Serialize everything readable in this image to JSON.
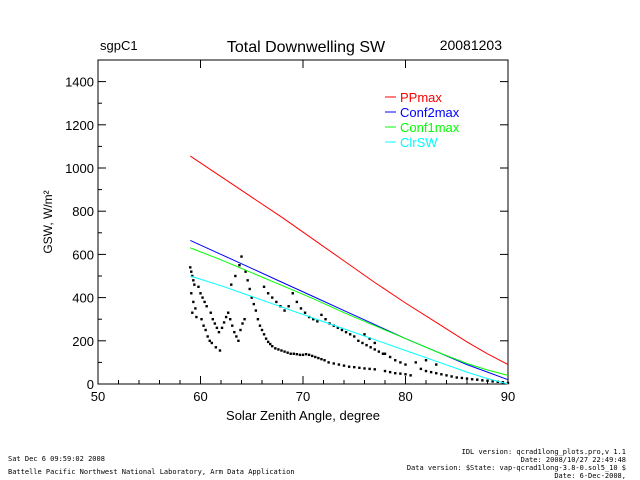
{
  "header": {
    "site": "sgpC1",
    "title": "Total Downwelling SW",
    "date": "20081203"
  },
  "footer": {
    "left_line1": "Sat Dec  6 09:59:02 2008",
    "left_line2": "Battelle Pacific Northwest National Laboratory, Arm Data Application",
    "right_line1": "IDL version: qcrad1long_plots.pro,v 1.1",
    "right_line2": "Date: 2008/10/27 22:49:48",
    "right_line3": "Data version: $State: vap-qcrad1long-3.8-0.sol5_10 $",
    "right_line4": "Date: 6-Dec-2008,"
  },
  "chart_data": {
    "type": "scatter",
    "title": "Total Downwelling SW",
    "xlabel": "Solar Zenith Angle, degree",
    "ylabel": "GSW, W/m²",
    "xlim": [
      50,
      90
    ],
    "ylim": [
      0,
      1500
    ],
    "x_ticks": [
      50,
      60,
      70,
      80,
      90
    ],
    "y_ticks": [
      0,
      200,
      400,
      600,
      800,
      1000,
      1200,
      1400
    ],
    "grid": false,
    "legend_position": "top-right",
    "lines": [
      {
        "name": "PPmax",
        "color": "#ff0000",
        "x": [
          59,
          62,
          65,
          68,
          71,
          74,
          77,
          80,
          83,
          86,
          88,
          90
        ],
        "y": [
          1055,
          960,
          865,
          770,
          670,
          570,
          470,
          375,
          285,
          195,
          140,
          90
        ]
      },
      {
        "name": "Conf2max",
        "color": "#0000ff",
        "x": [
          59,
          62,
          65,
          68,
          71,
          74,
          77,
          80,
          83,
          86,
          88,
          90
        ],
        "y": [
          665,
          600,
          535,
          470,
          405,
          340,
          275,
          210,
          150,
          90,
          55,
          20
        ]
      },
      {
        "name": "Conf1max",
        "color": "#00ff00",
        "x": [
          59,
          62,
          65,
          68,
          71,
          74,
          77,
          80,
          83,
          86,
          88,
          90
        ],
        "y": [
          630,
          575,
          515,
          455,
          395,
          330,
          270,
          210,
          150,
          95,
          65,
          40
        ]
      },
      {
        "name": "ClrSW",
        "color": "#00ffff",
        "x": [
          59,
          62,
          65,
          68,
          71,
          74,
          77,
          80,
          83,
          86,
          88,
          90
        ],
        "y": [
          500,
          455,
          405,
          355,
          305,
          255,
          205,
          155,
          105,
          55,
          25,
          0
        ]
      }
    ],
    "scatter": {
      "color": "#000000",
      "points": [
        [
          59.0,
          540
        ],
        [
          59.1,
          520
        ],
        [
          59.2,
          500
        ],
        [
          59.3,
          480
        ],
        [
          59.4,
          460
        ],
        [
          59.1,
          420
        ],
        [
          59.3,
          380
        ],
        [
          59.5,
          350
        ],
        [
          59.2,
          330
        ],
        [
          59.6,
          310
        ],
        [
          59.8,
          450
        ],
        [
          60.0,
          420
        ],
        [
          60.2,
          400
        ],
        [
          60.4,
          380
        ],
        [
          60.6,
          360
        ],
        [
          60.1,
          300
        ],
        [
          60.3,
          270
        ],
        [
          60.5,
          250
        ],
        [
          60.7,
          220
        ],
        [
          60.9,
          200
        ],
        [
          61.0,
          330
        ],
        [
          61.2,
          300
        ],
        [
          61.4,
          280
        ],
        [
          61.6,
          260
        ],
        [
          61.8,
          240
        ],
        [
          61.1,
          190
        ],
        [
          61.5,
          170
        ],
        [
          61.9,
          155
        ],
        [
          62.1,
          260
        ],
        [
          62.3,
          285
        ],
        [
          62.5,
          310
        ],
        [
          62.7,
          330
        ],
        [
          62.9,
          300
        ],
        [
          63.1,
          270
        ],
        [
          63.3,
          240
        ],
        [
          63.5,
          220
        ],
        [
          63.7,
          200
        ],
        [
          63.9,
          250
        ],
        [
          64.1,
          280
        ],
        [
          64.3,
          300
        ],
        [
          63.0,
          460
        ],
        [
          63.4,
          500
        ],
        [
          63.8,
          550
        ],
        [
          64.0,
          590
        ],
        [
          64.4,
          520
        ],
        [
          64.6,
          480
        ],
        [
          64.8,
          440
        ],
        [
          65.0,
          400
        ],
        [
          65.2,
          370
        ],
        [
          65.4,
          340
        ],
        [
          65.6,
          300
        ],
        [
          65.8,
          270
        ],
        [
          66.0,
          250
        ],
        [
          66.2,
          230
        ],
        [
          66.4,
          210
        ],
        [
          66.6,
          195
        ],
        [
          66.8,
          185
        ],
        [
          67.0,
          175
        ],
        [
          67.3,
          165
        ],
        [
          67.6,
          160
        ],
        [
          67.9,
          155
        ],
        [
          68.2,
          150
        ],
        [
          68.5,
          145
        ],
        [
          68.8,
          140
        ],
        [
          69.1,
          140
        ],
        [
          69.4,
          138
        ],
        [
          69.7,
          135
        ],
        [
          70.0,
          135
        ],
        [
          70.3,
          138
        ],
        [
          70.6,
          135
        ],
        [
          70.9,
          130
        ],
        [
          71.2,
          125
        ],
        [
          71.5,
          120
        ],
        [
          71.8,
          115
        ],
        [
          72.1,
          110
        ],
        [
          66.2,
          450
        ],
        [
          66.6,
          420
        ],
        [
          67.0,
          400
        ],
        [
          67.4,
          380
        ],
        [
          67.8,
          360
        ],
        [
          68.2,
          340
        ],
        [
          68.6,
          360
        ],
        [
          69.0,
          420
        ],
        [
          69.4,
          380
        ],
        [
          69.8,
          350
        ],
        [
          70.2,
          330
        ],
        [
          70.6,
          310
        ],
        [
          71.0,
          300
        ],
        [
          71.4,
          290
        ],
        [
          71.8,
          320
        ],
        [
          72.2,
          300
        ],
        [
          72.6,
          280
        ],
        [
          73.0,
          270
        ],
        [
          73.4,
          260
        ],
        [
          73.8,
          250
        ],
        [
          74.2,
          240
        ],
        [
          74.6,
          230
        ],
        [
          75.0,
          220
        ],
        [
          75.4,
          200
        ],
        [
          75.8,
          190
        ],
        [
          76.2,
          180
        ],
        [
          76.6,
          170
        ],
        [
          77.0,
          160
        ],
        [
          77.4,
          150
        ],
        [
          77.8,
          140
        ],
        [
          72.5,
          100
        ],
        [
          73.0,
          95
        ],
        [
          73.5,
          90
        ],
        [
          74.0,
          85
        ],
        [
          74.5,
          80
        ],
        [
          75.0,
          78
        ],
        [
          75.5,
          75
        ],
        [
          76.0,
          72
        ],
        [
          76.5,
          70
        ],
        [
          77.0,
          68
        ],
        [
          78.0,
          60
        ],
        [
          78.5,
          55
        ],
        [
          79.0,
          50
        ],
        [
          79.5,
          48
        ],
        [
          80.0,
          45
        ],
        [
          80.5,
          40
        ],
        [
          81.0,
          100
        ],
        [
          81.5,
          70
        ],
        [
          82.0,
          60
        ],
        [
          82.5,
          55
        ],
        [
          83.0,
          50
        ],
        [
          83.5,
          45
        ],
        [
          84.0,
          40
        ],
        [
          84.5,
          35
        ],
        [
          85.0,
          30
        ],
        [
          85.5,
          28
        ],
        [
          86.0,
          25
        ],
        [
          86.5,
          22
        ],
        [
          87.0,
          20
        ],
        [
          87.5,
          17
        ],
        [
          88.0,
          15
        ],
        [
          88.5,
          12
        ],
        [
          89.0,
          10
        ],
        [
          89.5,
          8
        ],
        [
          90.0,
          5
        ],
        [
          78.0,
          140
        ],
        [
          78.5,
          125
        ],
        [
          79.0,
          110
        ],
        [
          79.5,
          100
        ],
        [
          80.0,
          90
        ],
        [
          76.0,
          230
        ],
        [
          76.5,
          210
        ],
        [
          77.0,
          190
        ],
        [
          82.0,
          110
        ],
        [
          83.0,
          90
        ]
      ]
    }
  }
}
